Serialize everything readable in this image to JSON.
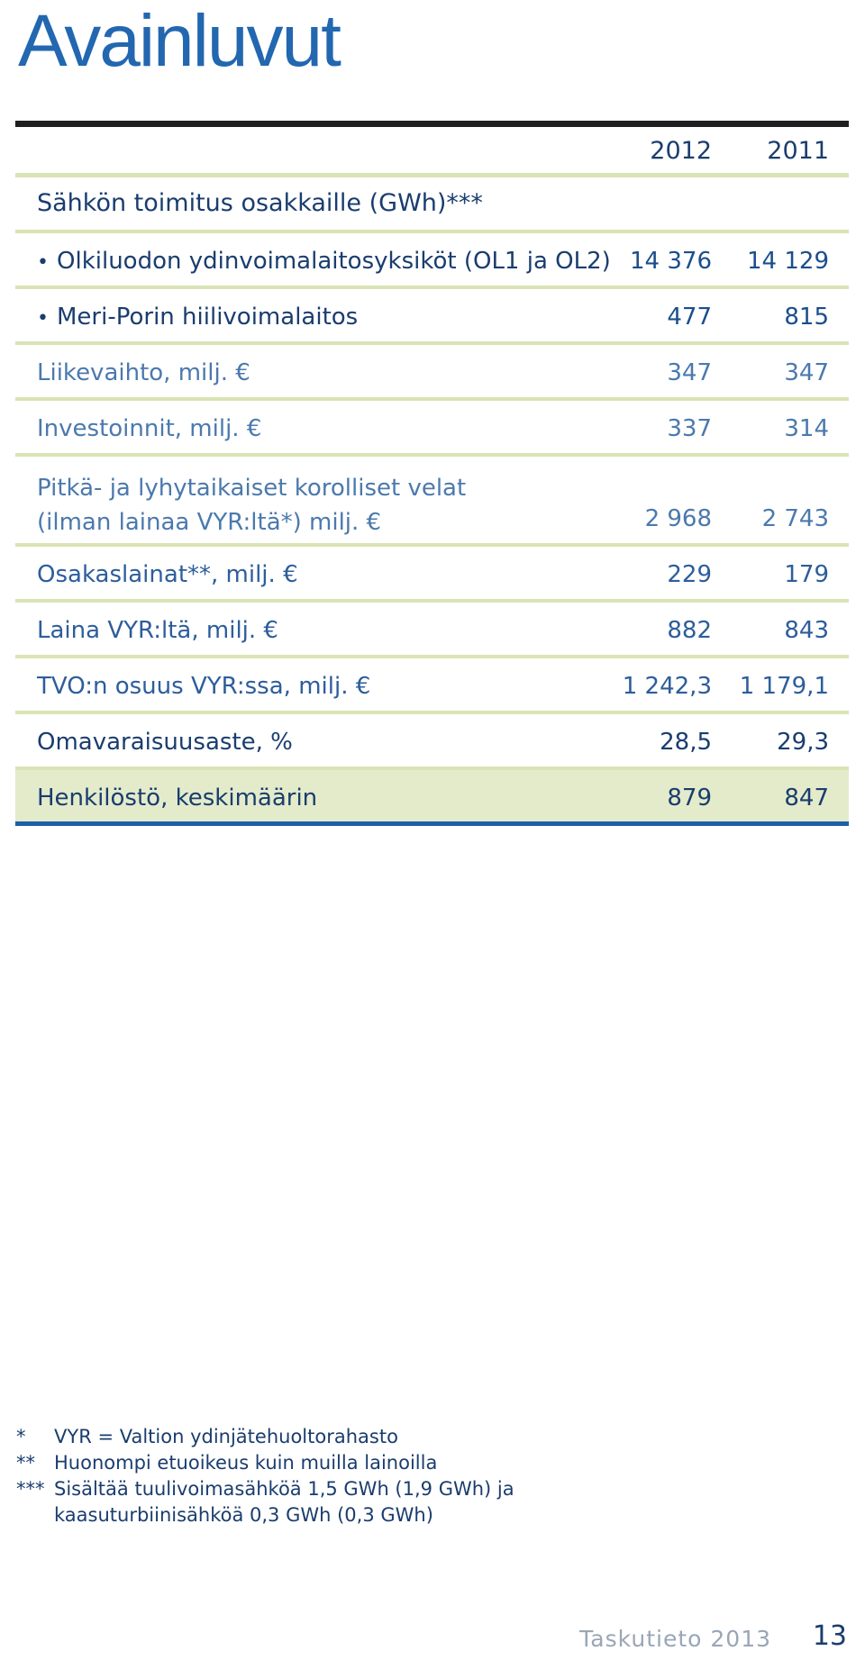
{
  "title": "Avainluvut",
  "columns": [
    "2012",
    "2011"
  ],
  "section": "Sähkön toimitus osakkaille (GWh)***",
  "delivery_items": [
    {
      "label": "Olkiluodon ydinvoimalaitosyksiköt (OL1 ja OL2)",
      "v2012": "14 376",
      "v2011": "14 129"
    },
    {
      "label": "Meri-Porin hiilivoimalaitos",
      "v2012": "477",
      "v2011": "815"
    }
  ],
  "rows": [
    {
      "label": "Liikevaihto, milj. €",
      "v2012": "347",
      "v2011": "347"
    },
    {
      "label": "Investoinnit, milj. €",
      "v2012": "337",
      "v2011": "314"
    },
    {
      "label_line1": "Pitkä- ja lyhytaikaiset korolliset velat",
      "label_line2": "(ilman lainaa VYR:ltä*) milj. €",
      "v2012": "2 968",
      "v2011": "2 743"
    },
    {
      "label": "Osakaslainat**, milj. €",
      "v2012": "229",
      "v2011": "179"
    },
    {
      "label": "Laina VYR:ltä, milj. €",
      "v2012": "882",
      "v2011": "843"
    },
    {
      "label": "TVO:n osuus VYR:ssa, milj. €",
      "v2012": "1 242,3",
      "v2011": "1 179,1"
    },
    {
      "label": "Omavaraisuusaste, %",
      "v2012": "28,5",
      "v2011": "29,3"
    },
    {
      "label": "Henkilöstö, keskimäärin",
      "v2012": "879",
      "v2011": "847"
    }
  ],
  "footnotes": [
    {
      "mark": "*",
      "text": "VYR = Valtion ydinjätehuoltorahasto"
    },
    {
      "mark": "**",
      "text": "Huonompi etuoikeus kuin muilla lainoilla"
    },
    {
      "mark": "***",
      "text": "Sisältää tuulivoimasähköä 1,5 GWh (1,9 GWh) ja",
      "text2": "kaasuturbiinisähköä 0,3 GWh (0,3 GWh)"
    }
  ],
  "footer": {
    "publication": "Taskutieto 2013",
    "page": "13"
  },
  "colors": {
    "title": "#2267b0",
    "text_dark": "#1a3d6e",
    "rule_green": "#d9e4b4",
    "highlight_row": "#e3ebcb",
    "bottom_rule": "#1f5fa6"
  }
}
